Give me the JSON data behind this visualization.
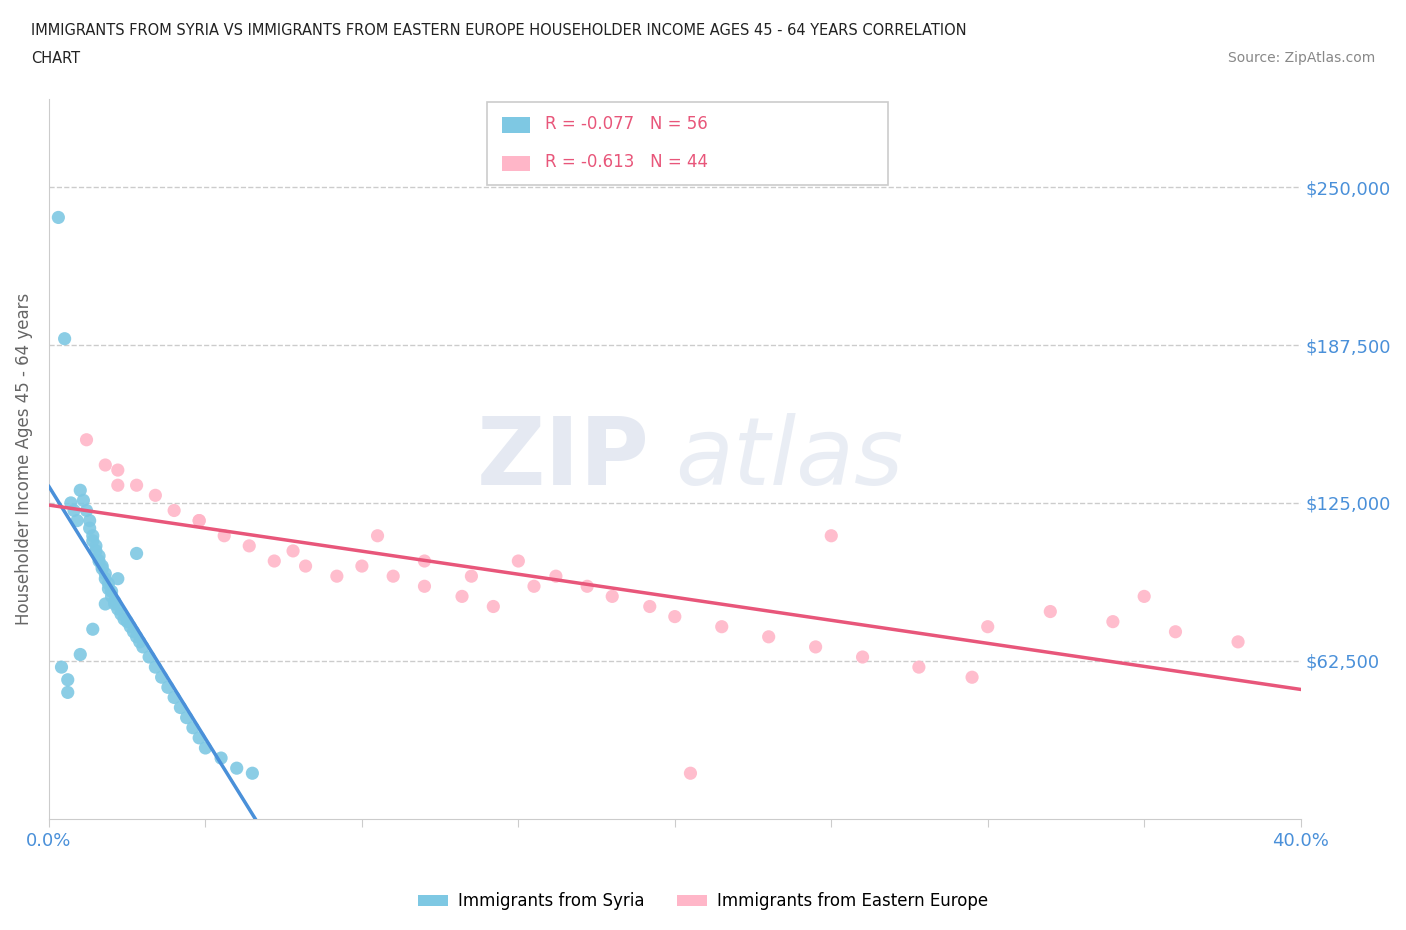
{
  "title_line1": "IMMIGRANTS FROM SYRIA VS IMMIGRANTS FROM EASTERN EUROPE HOUSEHOLDER INCOME AGES 45 - 64 YEARS CORRELATION",
  "title_line2": "CHART",
  "source": "Source: ZipAtlas.com",
  "ylabel": "Householder Income Ages 45 - 64 years",
  "xlim": [
    0.0,
    0.4
  ],
  "ylim": [
    0,
    285000
  ],
  "ytick_vals": [
    62500,
    125000,
    187500,
    250000
  ],
  "ytick_labels": [
    "$62,500",
    "$125,000",
    "$187,500",
    "$250,000"
  ],
  "xtick_vals": [
    0.0,
    0.05,
    0.1,
    0.15,
    0.2,
    0.25,
    0.3,
    0.35,
    0.4
  ],
  "xtick_labels": [
    "0.0%",
    "",
    "",
    "",
    "",
    "",
    "",
    "",
    "40.0%"
  ],
  "syria_color": "#7ec8e3",
  "eastern_color": "#ffb6c8",
  "syria_line_color": "#4a90d9",
  "eastern_line_color": "#e8567a",
  "dashed_line_color": "#b0b0b0",
  "legend_r_syria": "R = -0.077",
  "legend_n_syria": "N = 56",
  "legend_r_eastern": "R = -0.613",
  "legend_n_eastern": "N = 44",
  "background_color": "#ffffff",
  "watermark_zip": "ZIP",
  "watermark_atlas": "atlas",
  "syria_x": [
    0.003,
    0.004,
    0.005,
    0.006,
    0.007,
    0.008,
    0.009,
    0.01,
    0.011,
    0.012,
    0.013,
    0.013,
    0.014,
    0.014,
    0.015,
    0.015,
    0.016,
    0.016,
    0.017,
    0.017,
    0.018,
    0.018,
    0.019,
    0.019,
    0.02,
    0.02,
    0.021,
    0.021,
    0.022,
    0.023,
    0.024,
    0.025,
    0.026,
    0.027,
    0.028,
    0.029,
    0.03,
    0.032,
    0.034,
    0.036,
    0.038,
    0.04,
    0.042,
    0.044,
    0.046,
    0.048,
    0.05,
    0.055,
    0.06,
    0.065,
    0.006,
    0.01,
    0.014,
    0.018,
    0.022,
    0.028
  ],
  "syria_y": [
    238000,
    60000,
    190000,
    50000,
    125000,
    122000,
    118000,
    130000,
    126000,
    122000,
    118000,
    115000,
    112000,
    110000,
    108000,
    106000,
    104000,
    102000,
    100000,
    99000,
    97000,
    95000,
    93000,
    91000,
    90000,
    88000,
    86000,
    85000,
    83000,
    81000,
    79000,
    78000,
    76000,
    74000,
    72000,
    70000,
    68000,
    64000,
    60000,
    56000,
    52000,
    48000,
    44000,
    40000,
    36000,
    32000,
    28000,
    24000,
    20000,
    18000,
    55000,
    65000,
    75000,
    85000,
    95000,
    105000
  ],
  "eastern_x": [
    0.012,
    0.018,
    0.022,
    0.028,
    0.034,
    0.04,
    0.048,
    0.056,
    0.064,
    0.072,
    0.082,
    0.092,
    0.1,
    0.11,
    0.12,
    0.132,
    0.142,
    0.15,
    0.162,
    0.172,
    0.18,
    0.192,
    0.2,
    0.215,
    0.23,
    0.245,
    0.26,
    0.278,
    0.295,
    0.32,
    0.34,
    0.36,
    0.38,
    0.25,
    0.155,
    0.105,
    0.205,
    0.3,
    0.35,
    0.135,
    0.022,
    0.048,
    0.078,
    0.12
  ],
  "eastern_y": [
    150000,
    140000,
    138000,
    132000,
    128000,
    122000,
    118000,
    112000,
    108000,
    102000,
    100000,
    96000,
    100000,
    96000,
    92000,
    88000,
    84000,
    102000,
    96000,
    92000,
    88000,
    84000,
    80000,
    76000,
    72000,
    68000,
    64000,
    60000,
    56000,
    82000,
    78000,
    74000,
    70000,
    112000,
    92000,
    112000,
    18000,
    76000,
    88000,
    96000,
    132000,
    118000,
    106000,
    102000
  ]
}
